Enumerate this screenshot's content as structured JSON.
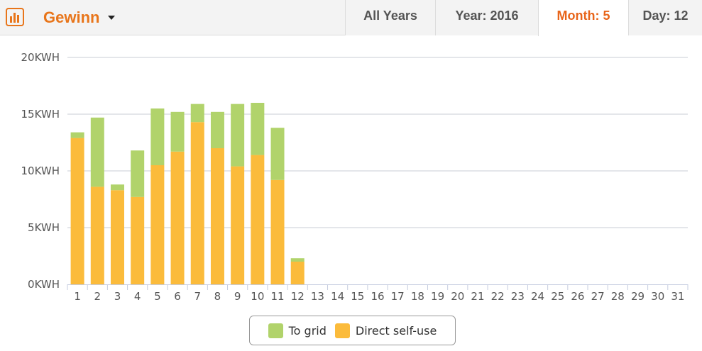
{
  "header": {
    "title": "Gewinn",
    "tabs": [
      {
        "label": "All Years",
        "active": false
      },
      {
        "label": "Year: 2016",
        "active": false
      },
      {
        "label": "Month: 5",
        "active": true
      },
      {
        "label": "Day: 12",
        "active": false
      }
    ]
  },
  "colors": {
    "to_grid": "#b1d36b",
    "self_use": "#fbbb3b",
    "accent": "#e8751a",
    "grid": "#c8ccd4"
  },
  "chart_data": {
    "type": "bar",
    "stacked": true,
    "categories": [
      "1",
      "2",
      "3",
      "4",
      "5",
      "6",
      "7",
      "8",
      "9",
      "10",
      "11",
      "12",
      "13",
      "14",
      "15",
      "16",
      "17",
      "18",
      "19",
      "20",
      "21",
      "22",
      "23",
      "24",
      "25",
      "26",
      "27",
      "28",
      "29",
      "30",
      "31"
    ],
    "series": [
      {
        "name": "Direct self-use",
        "color": "#fbbb3b",
        "values": [
          12.9,
          8.6,
          8.3,
          7.7,
          10.5,
          11.7,
          14.3,
          12.0,
          10.4,
          11.4,
          9.2,
          2.0,
          0,
          0,
          0,
          0,
          0,
          0,
          0,
          0,
          0,
          0,
          0,
          0,
          0,
          0,
          0,
          0,
          0,
          0,
          0
        ]
      },
      {
        "name": "To grid",
        "color": "#b1d36b",
        "values": [
          0.5,
          6.1,
          0.5,
          4.1,
          5.0,
          3.5,
          1.6,
          3.2,
          5.5,
          4.6,
          4.6,
          0.3,
          0,
          0,
          0,
          0,
          0,
          0,
          0,
          0,
          0,
          0,
          0,
          0,
          0,
          0,
          0,
          0,
          0,
          0,
          0
        ]
      }
    ],
    "yticks": [
      0,
      5,
      10,
      15,
      20
    ],
    "ytick_labels": [
      "0KWH",
      "5KWH",
      "10KWH",
      "15KWH",
      "20KWH"
    ],
    "ylim": [
      0,
      20
    ],
    "grid": true,
    "legend": {
      "placement": "bottom-center",
      "items": [
        {
          "label": "To grid",
          "color": "#b1d36b"
        },
        {
          "label": "Direct self-use",
          "color": "#fbbb3b"
        }
      ]
    }
  }
}
